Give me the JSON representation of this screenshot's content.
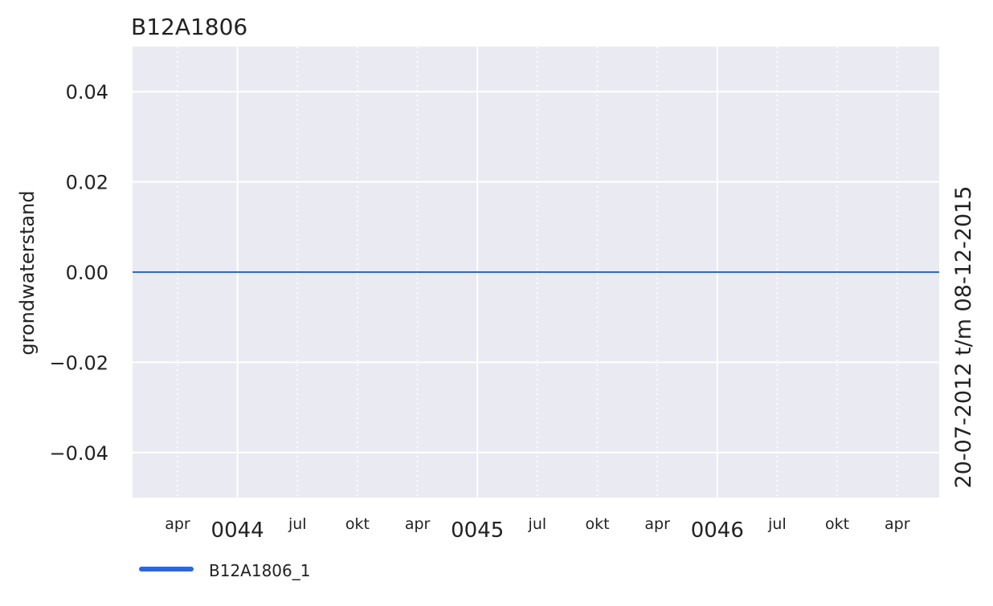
{
  "chart_data": {
    "type": "line",
    "title": "B12A1806",
    "ylabel": "grondwaterstand",
    "right_label": "20-07-2012 t/m 08-12-2015",
    "ylim": [
      -0.05,
      0.05
    ],
    "yticks": [
      0.04,
      0.02,
      0.0,
      -0.02,
      -0.04
    ],
    "ytick_labels": [
      "0.04",
      "0.02",
      "0.00",
      "−0.02",
      "−0.04"
    ],
    "xticks_minor": [
      {
        "label": "apr",
        "pos": 1.0
      },
      {
        "label": "jul",
        "pos": 3.0
      },
      {
        "label": "okt",
        "pos": 4.0
      },
      {
        "label": "apr",
        "pos": 5.0
      },
      {
        "label": "jul",
        "pos": 7.0
      },
      {
        "label": "okt",
        "pos": 8.0
      },
      {
        "label": "apr",
        "pos": 9.0
      },
      {
        "label": "jul",
        "pos": 11.0
      },
      {
        "label": "okt",
        "pos": 12.0
      },
      {
        "label": "apr",
        "pos": 13.0
      }
    ],
    "xticks_major": [
      {
        "label": "0044",
        "pos": 2.0
      },
      {
        "label": "0045",
        "pos": 6.0
      },
      {
        "label": "0046",
        "pos": 10.0
      }
    ],
    "xlim": [
      0.25,
      13.7
    ],
    "grid": true,
    "background": "#eaeaf2",
    "series": [
      {
        "name": "B12A1806_1",
        "color": "#2866e8",
        "x": [
          0.25,
          13.7
        ],
        "y": [
          0.0,
          0.0
        ]
      }
    ],
    "legend": {
      "placement": "bottom-left",
      "entries": [
        "B12A1806_1"
      ]
    }
  }
}
